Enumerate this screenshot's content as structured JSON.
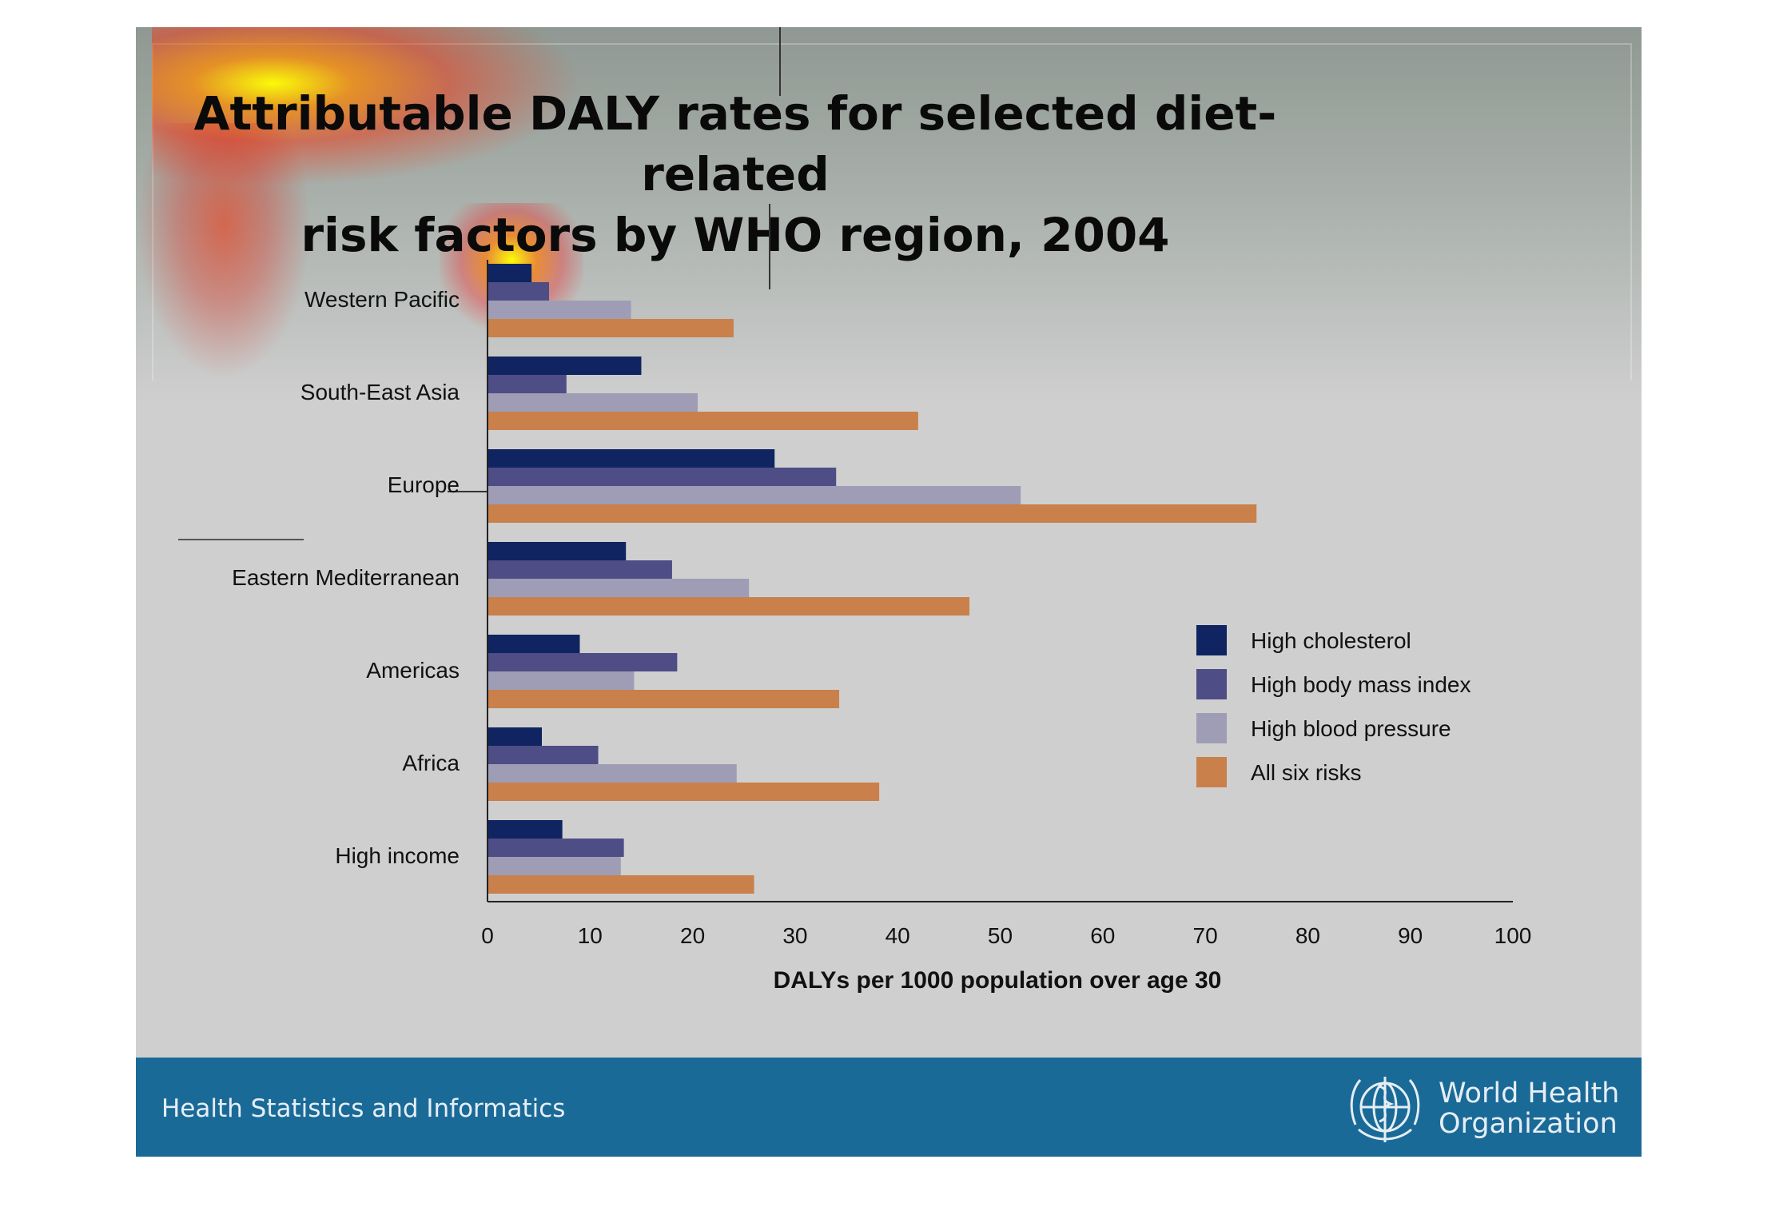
{
  "slide": {
    "title_line1": "Attributable DALY rates for selected diet-related",
    "title_line2": "risk factors by WHO region, 2004"
  },
  "footer": {
    "left_text": "Health Statistics and Informatics",
    "org_line1": "World Health",
    "org_line2": "Organization",
    "logo": "who-emblem-icon",
    "color": "#1a6a98"
  },
  "colors": {
    "high_cholesterol": "#0f2460",
    "high_body_mass_index": "#4e4d86",
    "high_blood_pressure": "#9f9db5",
    "all_six_risks": "#c9804a"
  },
  "chart_data": {
    "type": "bar",
    "orientation": "horizontal",
    "title": "Attributable DALY rates for selected diet-related risk factors by WHO region, 2004",
    "xlabel": "DALYs per 1000 population over age 30",
    "ylabel": "",
    "xlim": [
      0,
      100
    ],
    "xticks": [
      "0",
      "10",
      "20",
      "30",
      "40",
      "50",
      "60",
      "70",
      "80",
      "90",
      "100"
    ],
    "grid": false,
    "legend_position": "right",
    "categories": [
      "Western Pacific",
      "South-East Asia",
      "Europe",
      "Eastern Mediterranean",
      "Americas",
      "Africa",
      "High income"
    ],
    "series": [
      {
        "name": "High cholesterol",
        "values": [
          4.3,
          15,
          28,
          13.5,
          9,
          5.3,
          7.3
        ]
      },
      {
        "name": "High body mass index",
        "values": [
          6,
          7.7,
          34,
          18,
          18.5,
          10.8,
          13.3
        ]
      },
      {
        "name": "High blood pressure",
        "values": [
          14,
          20.5,
          52,
          25.5,
          14.3,
          24.3,
          13
        ]
      },
      {
        "name": "All six risks",
        "values": [
          24,
          42,
          75,
          47,
          34.3,
          38.2,
          26
        ]
      }
    ]
  }
}
